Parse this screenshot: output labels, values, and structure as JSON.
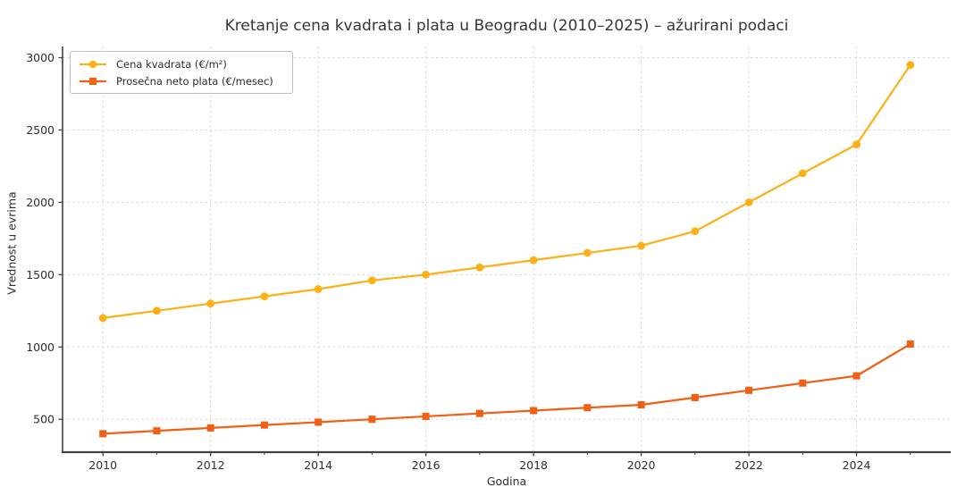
{
  "chart_data": {
    "type": "line",
    "title": "Kretanje cena kvadrata i plata u Beogradu (2010–2025) – ažurirani podaci",
    "xlabel": "Godina",
    "ylabel": "Vrednost u evrima",
    "x": [
      2010,
      2011,
      2012,
      2013,
      2014,
      2015,
      2016,
      2017,
      2018,
      2019,
      2020,
      2021,
      2022,
      2023,
      2024,
      2025
    ],
    "series": [
      {
        "name": "Cena kvadrata (€/m²)",
        "marker": "circle",
        "color": "#FCB016",
        "values": [
          1200,
          1250,
          1300,
          1350,
          1400,
          1460,
          1500,
          1550,
          1600,
          1650,
          1700,
          1800,
          2000,
          2200,
          2400,
          2950
        ]
      },
      {
        "name": "Prosečna neto plata (€/mesec)",
        "marker": "square",
        "color": "#F05F12",
        "values": [
          400,
          420,
          440,
          460,
          480,
          500,
          520,
          540,
          560,
          580,
          600,
          650,
          700,
          750,
          800,
          1020
        ]
      }
    ],
    "xlim": [
      2009.25,
      2025.75
    ],
    "ylim": [
      272.5,
      3077.5
    ],
    "xticks": [
      2010,
      2012,
      2014,
      2016,
      2018,
      2020,
      2022,
      2024
    ],
    "xminorticks": [
      2011,
      2013,
      2015,
      2017,
      2019,
      2021,
      2023,
      2025
    ],
    "yticks": [
      500,
      1000,
      1500,
      2000,
      2500,
      3000
    ],
    "grid": true,
    "grid_style": "dashed",
    "legend_position": "upper left",
    "style": {
      "grid_color": "#d8d8d8",
      "spine_color": "#424242",
      "tick_label_color": "#2e2e2e",
      "title_color": "#363636",
      "background": "#ffffff"
    }
  }
}
